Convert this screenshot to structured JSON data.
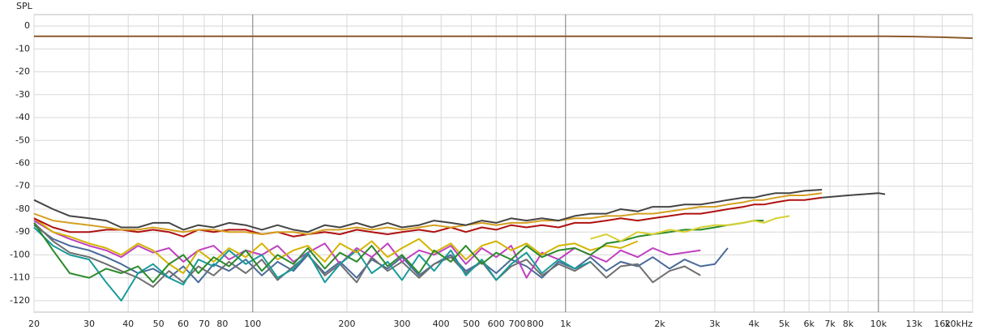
{
  "chart_data": {
    "type": "line",
    "ylabel": "SPL",
    "xscale": "log",
    "grid": true,
    "xlim": [
      20,
      20000
    ],
    "ylim": [
      -125,
      5
    ],
    "yticks": [
      0,
      -10,
      -20,
      -30,
      -40,
      -50,
      -60,
      -70,
      -80,
      -90,
      -100,
      -110,
      -120
    ],
    "xticks": [
      20,
      30,
      40,
      50,
      60,
      70,
      80,
      100,
      200,
      300,
      400,
      500,
      600,
      700,
      800,
      {
        "value": 1000,
        "label": "1k"
      },
      {
        "value": 2000,
        "label": "2k"
      },
      {
        "value": 3000,
        "label": "3k"
      },
      {
        "value": 4000,
        "label": "4k"
      },
      {
        "value": 5000,
        "label": "5k"
      },
      {
        "value": 6000,
        "label": "6k"
      },
      {
        "value": 7000,
        "label": "7k"
      },
      {
        "value": 8000,
        "label": "8k"
      },
      {
        "value": 10000,
        "label": "10k"
      },
      {
        "value": 13000,
        "label": "13k"
      },
      {
        "value": 16000,
        "label": "16k"
      },
      {
        "value": 20000,
        "label": "20kHz"
      }
    ],
    "x": [
      20,
      23,
      26,
      30,
      34,
      38,
      43,
      48,
      54,
      60,
      67,
      75,
      84,
      95,
      107,
      120,
      135,
      150,
      170,
      190,
      215,
      240,
      270,
      300,
      340,
      380,
      430,
      480,
      540,
      600,
      670,
      750,
      840,
      950,
      1070,
      1200,
      1350,
      1500,
      1700,
      1900,
      2150,
      2400,
      2700,
      3000,
      3300,
      3700,
      4000,
      4300,
      4700,
      5200,
      5800,
      6600,
      8000,
      10000,
      10500,
      13000,
      16000,
      20000
    ],
    "series": [
      {
        "color": "#4a6a9a",
        "values": [
          -87,
          -93,
          -96,
          -98,
          -101,
          -104,
          -108,
          -106,
          -110,
          -105,
          -112,
          -104,
          -107,
          -102,
          -109,
          -103,
          -107,
          -100,
          -108,
          -103,
          -110,
          -102,
          -106,
          -101,
          -109,
          -104,
          -100,
          -107,
          -103,
          -108,
          -102,
          -105,
          -110,
          -103,
          -106,
          -101,
          -107,
          -103,
          -105,
          -101,
          -106,
          -102,
          -105,
          -104,
          -97,
          null,
          null,
          null,
          null,
          null,
          null,
          null,
          null,
          null,
          null,
          null,
          null,
          null
        ]
      },
      {
        "color": "#6f6f6f",
        "values": [
          -86,
          -94,
          -99,
          -101,
          -104,
          -107,
          -110,
          -114,
          -107,
          -112,
          -105,
          -109,
          -103,
          -108,
          -102,
          -111,
          -105,
          -100,
          -109,
          -104,
          -112,
          -101,
          -107,
          -103,
          -110,
          -104,
          -101,
          -108,
          -103,
          -111,
          -105,
          -102,
          -109,
          -104,
          -107,
          -103,
          -110,
          -105,
          -104,
          -112,
          -107,
          -105,
          -109,
          null,
          null,
          null,
          null,
          null,
          null,
          null,
          null,
          null,
          null,
          null,
          null,
          null,
          null,
          null
        ]
      },
      {
        "color": "#c040c0",
        "values": [
          -85,
          -90,
          -93,
          -96,
          -98,
          -101,
          -96,
          -99,
          -97,
          -103,
          -98,
          -96,
          -102,
          -98,
          -100,
          -96,
          -103,
          -99,
          -95,
          -104,
          -97,
          -101,
          -95,
          -103,
          -98,
          -100,
          -96,
          -104,
          -97,
          -101,
          -96,
          -110,
          -99,
          -102,
          -97,
          -100,
          -103,
          -98,
          -101,
          -97,
          -100,
          -99,
          -98,
          null,
          null,
          null,
          null,
          null,
          null,
          null,
          null,
          null,
          null,
          null,
          null,
          null,
          null,
          null
        ]
      },
      {
        "color": "#1a9a9a",
        "values": [
          -88,
          -96,
          -100,
          -102,
          -112,
          -120,
          -108,
          -104,
          -110,
          -113,
          -102,
          -105,
          -98,
          -104,
          -100,
          -110,
          -106,
          -99,
          -112,
          -104,
          -98,
          -108,
          -103,
          -111,
          -100,
          -107,
          -98,
          -109,
          -102,
          -111,
          -104,
          -99,
          -108,
          -102,
          -106,
          -103,
          null,
          null,
          null,
          null,
          null,
          null,
          null,
          null,
          null,
          null,
          null,
          null,
          null,
          null,
          null,
          null,
          null,
          null,
          null,
          null,
          null,
          null
        ]
      },
      {
        "color": "#d4b400",
        "values": [
          -84,
          -90,
          -92,
          -95,
          -97,
          -100,
          -95,
          -98,
          -104,
          -108,
          -98,
          -103,
          -97,
          -101,
          -95,
          -102,
          -98,
          -96,
          -103,
          -95,
          -99,
          -94,
          -101,
          -97,
          -93,
          -99,
          -95,
          -102,
          -96,
          -94,
          -98,
          -95,
          -100,
          -96,
          -95,
          -98,
          -96,
          -97,
          -94,
          null,
          null,
          null,
          null,
          null,
          null,
          null,
          null,
          null,
          null,
          null,
          null,
          null,
          null,
          null,
          null,
          null,
          null,
          null
        ]
      },
      {
        "color": "#2a8a2a",
        "values": [
          -86,
          -98,
          -108,
          -110,
          -106,
          -108,
          -105,
          -112,
          -104,
          -100,
          -108,
          -101,
          -105,
          -98,
          -107,
          -100,
          -104,
          -97,
          -106,
          -99,
          -103,
          -96,
          -105,
          -100,
          -108,
          -98,
          -103,
          -96,
          -104,
          -99,
          -102,
          -96,
          -101,
          -98,
          -97,
          -100,
          -95,
          -94,
          -92,
          -91,
          -90,
          -89,
          -89,
          -88,
          -87,
          -86,
          -85,
          -85,
          null,
          null,
          null,
          null,
          null,
          null,
          null,
          null,
          null,
          null
        ]
      },
      {
        "color": "#d8d030",
        "values": [
          null,
          null,
          null,
          null,
          null,
          null,
          null,
          null,
          null,
          null,
          null,
          null,
          null,
          null,
          null,
          null,
          null,
          null,
          null,
          null,
          null,
          null,
          null,
          null,
          null,
          null,
          null,
          null,
          null,
          null,
          null,
          null,
          null,
          null,
          null,
          -93,
          -91,
          -94,
          -90,
          -91,
          -89,
          -90,
          -88,
          -87,
          -87,
          -86,
          -85,
          -86,
          -84,
          -83,
          null,
          null,
          null,
          null,
          null,
          null,
          null,
          null
        ]
      },
      {
        "color": "#b01010",
        "values": [
          -84,
          -88,
          -90,
          -90,
          -89,
          -89,
          -90,
          -89,
          -90,
          -92,
          -89,
          -90,
          -89,
          -89,
          -91,
          -90,
          -92,
          -91,
          -90,
          -91,
          -89,
          -90,
          -91,
          -90,
          -89,
          -90,
          -88,
          -90,
          -88,
          -89,
          -87,
          -88,
          -87,
          -88,
          -86,
          -86,
          -85,
          -84,
          -85,
          -84,
          -83,
          -82,
          -82,
          -81,
          -80,
          -79,
          -78,
          -78,
          -77,
          -76,
          -76,
          -75,
          null,
          null,
          null,
          null,
          null,
          null
        ]
      },
      {
        "color": "#d4a020",
        "values": [
          -82,
          -85,
          -86,
          -87,
          -88,
          -89,
          -89,
          -88,
          -89,
          -90,
          -89,
          -89,
          -90,
          -90,
          -91,
          -90,
          -90,
          -91,
          -89,
          -89,
          -88,
          -89,
          -88,
          -89,
          -88,
          -87,
          -88,
          -87,
          -86,
          -87,
          -86,
          -86,
          -85,
          -85,
          -84,
          -84,
          -83,
          -83,
          -82,
          -82,
          -81,
          -80,
          -79,
          -79,
          -78,
          -77,
          -76,
          -76,
          -75,
          -74,
          -74,
          -73,
          null,
          null,
          null,
          null,
          null,
          null
        ]
      },
      {
        "color": "#444444",
        "values": [
          -76,
          -80,
          -83,
          -84,
          -85,
          -88,
          -88,
          -86,
          -86,
          -89,
          -87,
          -88,
          -86,
          -87,
          -89,
          -87,
          -89,
          -90,
          -87,
          -88,
          -86,
          -88,
          -86,
          -88,
          -87,
          -85,
          -86,
          -87,
          -85,
          -86,
          -84,
          -85,
          -84,
          -85,
          -83,
          -82,
          -82,
          -80,
          -81,
          -79,
          -79,
          -78,
          -78,
          -77,
          -76,
          -75,
          -75,
          -74,
          -73,
          -73,
          -72,
          -71.5,
          null,
          null,
          null,
          null,
          null,
          null
        ]
      },
      {
        "color": "#444444",
        "values": [
          null,
          null,
          null,
          null,
          null,
          null,
          null,
          null,
          null,
          null,
          null,
          null,
          null,
          null,
          null,
          null,
          null,
          null,
          null,
          null,
          null,
          null,
          null,
          null,
          null,
          null,
          null,
          null,
          null,
          null,
          null,
          null,
          null,
          null,
          null,
          null,
          null,
          null,
          null,
          null,
          null,
          null,
          null,
          null,
          null,
          null,
          null,
          null,
          null,
          null,
          null,
          -75,
          -74,
          -73,
          -73.5,
          null,
          null,
          null
        ]
      },
      {
        "color": "#8b5a2b",
        "values": [
          -4.5,
          -4.5,
          -4.5,
          -4.5,
          -4.5,
          -4.5,
          -4.5,
          -4.5,
          -4.5,
          -4.5,
          -4.5,
          -4.5,
          -4.5,
          -4.5,
          -4.5,
          -4.5,
          -4.5,
          -4.5,
          -4.5,
          -4.5,
          -4.5,
          -4.5,
          -4.5,
          -4.5,
          -4.5,
          -4.5,
          -4.5,
          -4.5,
          -4.5,
          -4.5,
          -4.5,
          -4.5,
          -4.5,
          -4.5,
          -4.5,
          -4.5,
          -4.5,
          -4.5,
          -4.5,
          -4.5,
          -4.5,
          -4.5,
          -4.5,
          -4.5,
          -4.5,
          -4.5,
          -4.5,
          -4.5,
          -4.5,
          -4.5,
          -4.5,
          -4.5,
          -4.5,
          -4.5,
          -4.5,
          -4.6,
          -4.9,
          -5.3
        ]
      }
    ]
  }
}
